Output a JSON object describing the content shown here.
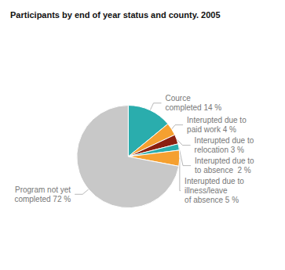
{
  "chart_data": {
    "type": "pie",
    "title": "Participants by end of year status and county. 2005",
    "categories": [
      "Cource\ncompleted 14 %",
      "Interupted due to\npaid work 4 %",
      "Interupted due to\nrelocation 3 %",
      "Interupted due to\nto absence  2 %",
      "Interupted due to\nillness/leave\nof absence 5 %",
      "Program not yet\ncompleted 72 %"
    ],
    "values": [
      14,
      4,
      3,
      2,
      5,
      72
    ],
    "colors": [
      "#2aadad",
      "#f5a030",
      "#8b2010",
      "#2aadad",
      "#f5a030",
      "#c8c8c8"
    ]
  }
}
